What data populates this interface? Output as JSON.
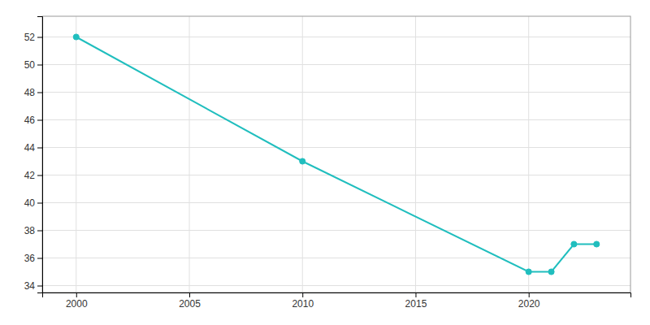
{
  "chart_data": {
    "type": "line",
    "x": [
      2000,
      2010,
      2020,
      2021,
      2022,
      2023
    ],
    "values": [
      52,
      43,
      35,
      35,
      37,
      37
    ],
    "color": "#20BEBE",
    "marker": "o",
    "xlim": [
      1998.5,
      2024.5
    ],
    "ylim": [
      33.5,
      53.5
    ],
    "xticks": [
      2000,
      2005,
      2010,
      2015,
      2020
    ],
    "yticks": [
      34,
      36,
      38,
      40,
      42,
      44,
      46,
      48,
      50,
      52
    ],
    "grid": true
  }
}
